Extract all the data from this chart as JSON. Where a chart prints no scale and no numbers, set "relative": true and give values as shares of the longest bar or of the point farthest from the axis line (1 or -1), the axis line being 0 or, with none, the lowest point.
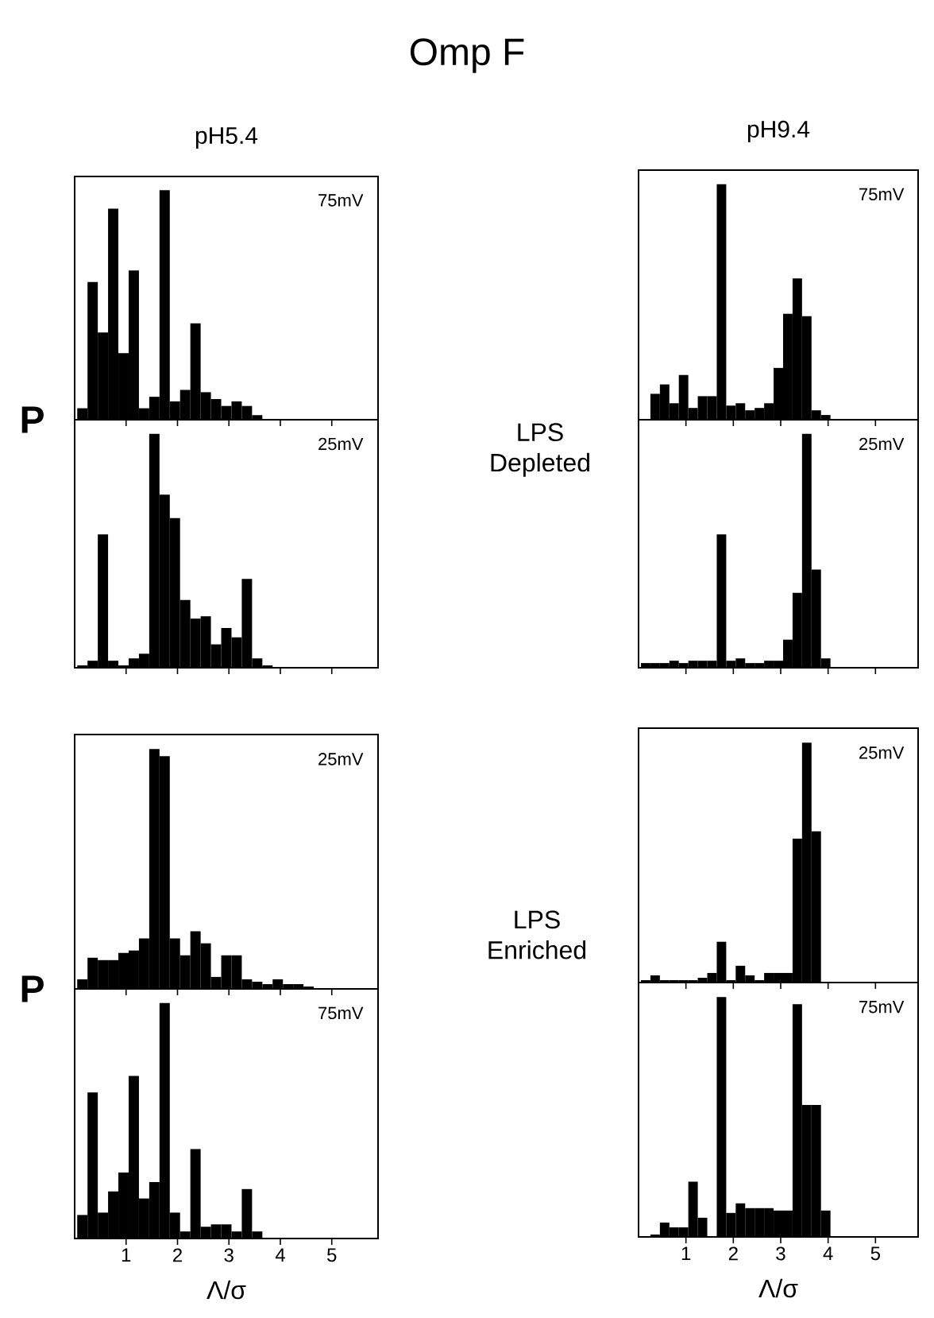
{
  "chart_data": [
    {
      "type": "other",
      "title": "Omp F",
      "annotations": [
        "LPS Depleted",
        "LPS Enriched"
      ]
    },
    {
      "type": "bar",
      "title": "pH5.4",
      "ylabel": "P",
      "annotations": [
        "75mV"
      ],
      "relative": true,
      "color": "#000000",
      "xlim": [
        0,
        5.9
      ],
      "xticks": [
        1,
        2,
        3,
        4,
        5
      ],
      "tick_labels": false,
      "x": [
        0.15,
        0.35,
        0.55,
        0.75,
        0.95,
        1.15,
        1.35,
        1.55,
        1.75,
        1.95,
        2.15,
        2.35,
        2.55,
        2.75,
        2.95,
        3.15,
        3.35,
        3.55,
        3.75,
        3.95,
        4.15,
        4.35,
        4.55,
        4.75
      ],
      "values": [
        0.05,
        0.6,
        0.38,
        0.92,
        0.29,
        0.65,
        0.05,
        0.1,
        1,
        0.08,
        0.13,
        0.42,
        0.12,
        0.09,
        0.06,
        0.08,
        0.06,
        0.02,
        0,
        0,
        0,
        0,
        0,
        0
      ]
    },
    {
      "type": "bar",
      "title": "pH9.4",
      "annotations": [
        "75mV"
      ],
      "relative": true,
      "color": "#000000",
      "xlim": [
        0,
        5.9
      ],
      "xticks": [
        1,
        2,
        3,
        4,
        5
      ],
      "tick_labels": false,
      "x": [
        0.15,
        0.35,
        0.55,
        0.75,
        0.95,
        1.15,
        1.35,
        1.55,
        1.75,
        1.95,
        2.15,
        2.35,
        2.55,
        2.75,
        2.95,
        3.15,
        3.35,
        3.55,
        3.75,
        3.95,
        4.15,
        4.35,
        4.55,
        4.75
      ],
      "values": [
        0,
        0.11,
        0.15,
        0.07,
        0.19,
        0.05,
        0.1,
        0.1,
        1,
        0.06,
        0.07,
        0.04,
        0.05,
        0.07,
        0.22,
        0.45,
        0.6,
        0.44,
        0.04,
        0.02,
        0,
        0,
        0,
        0
      ]
    },
    {
      "type": "bar",
      "annotations": [
        "25mV"
      ],
      "relative": true,
      "color": "#000000",
      "xlim": [
        0,
        5.9
      ],
      "xticks": [
        1,
        2,
        3,
        4,
        5
      ],
      "tick_labels": false,
      "x": [
        0.15,
        0.35,
        0.55,
        0.75,
        0.95,
        1.15,
        1.35,
        1.55,
        1.75,
        1.95,
        2.15,
        2.35,
        2.55,
        2.75,
        2.95,
        3.15,
        3.35,
        3.55,
        3.75,
        3.95,
        4.15,
        4.35,
        4.55,
        4.75
      ],
      "values": [
        0.01,
        0.03,
        0.57,
        0.03,
        0.01,
        0.04,
        0.06,
        1,
        0.74,
        0.64,
        0.29,
        0.21,
        0.22,
        0.1,
        0.17,
        0.13,
        0.38,
        0.04,
        0.01,
        0,
        0,
        0,
        0,
        0
      ]
    },
    {
      "type": "bar",
      "annotations": [
        "25mV"
      ],
      "relative": true,
      "color": "#000000",
      "xlim": [
        0,
        5.9
      ],
      "xticks": [
        1,
        2,
        3,
        4,
        5
      ],
      "tick_labels": false,
      "x": [
        0.15,
        0.35,
        0.55,
        0.75,
        0.95,
        1.15,
        1.35,
        1.55,
        1.75,
        1.95,
        2.15,
        2.35,
        2.55,
        2.75,
        2.95,
        3.15,
        3.35,
        3.55,
        3.75,
        3.95,
        4.15,
        4.35,
        4.55,
        4.75
      ],
      "values": [
        0.02,
        0.02,
        0.02,
        0.03,
        0.02,
        0.03,
        0.03,
        0.03,
        0.57,
        0.03,
        0.04,
        0.02,
        0.02,
        0.03,
        0.03,
        0.12,
        0.32,
        1,
        0.42,
        0.04,
        0,
        0,
        0,
        0
      ]
    },
    {
      "type": "bar",
      "ylabel": "P",
      "annotations": [
        "25mV"
      ],
      "relative": true,
      "color": "#000000",
      "xlim": [
        0,
        5.9
      ],
      "xticks": [
        1,
        2,
        3,
        4,
        5
      ],
      "tick_labels": false,
      "x": [
        0.15,
        0.35,
        0.55,
        0.75,
        0.95,
        1.15,
        1.35,
        1.55,
        1.75,
        1.95,
        2.15,
        2.35,
        2.55,
        2.75,
        2.95,
        3.15,
        3.35,
        3.55,
        3.75,
        3.95,
        4.15,
        4.35,
        4.55,
        4.75
      ],
      "values": [
        0.04,
        0.13,
        0.12,
        0.12,
        0.15,
        0.16,
        0.21,
        1,
        0.97,
        0.21,
        0.14,
        0.24,
        0.19,
        0.05,
        0.14,
        0.14,
        0.04,
        0.03,
        0.02,
        0.04,
        0.02,
        0.02,
        0.01,
        0
      ]
    },
    {
      "type": "bar",
      "annotations": [
        "25mV"
      ],
      "relative": true,
      "color": "#000000",
      "xlim": [
        0,
        5.9
      ],
      "xticks": [
        1,
        2,
        3,
        4,
        5
      ],
      "tick_labels": false,
      "x": [
        0.15,
        0.35,
        0.55,
        0.75,
        0.95,
        1.15,
        1.35,
        1.55,
        1.75,
        1.95,
        2.15,
        2.35,
        2.55,
        2.75,
        2.95,
        3.15,
        3.35,
        3.55,
        3.75,
        3.95,
        4.15,
        4.35,
        4.55,
        4.75
      ],
      "values": [
        0.01,
        0.03,
        0.01,
        0.01,
        0.01,
        0.01,
        0.02,
        0.04,
        0.17,
        0.01,
        0.07,
        0.03,
        0.01,
        0.04,
        0.04,
        0.04,
        0.6,
        1,
        0.63,
        0,
        0,
        0,
        0,
        0
      ]
    },
    {
      "type": "bar",
      "xlabel": "Λ/σ",
      "annotations": [
        "75mV"
      ],
      "relative": true,
      "color": "#000000",
      "xlim": [
        0,
        5.9
      ],
      "xticks": [
        1,
        2,
        3,
        4,
        5
      ],
      "tick_labels": "x",
      "x": [
        0.15,
        0.35,
        0.55,
        0.75,
        0.95,
        1.15,
        1.35,
        1.55,
        1.75,
        1.95,
        2.15,
        2.35,
        2.55,
        2.75,
        2.95,
        3.15,
        3.35,
        3.55,
        3.75,
        3.95,
        4.15,
        4.35,
        4.55,
        4.75
      ],
      "values": [
        0.1,
        0.62,
        0.11,
        0.2,
        0.28,
        0.69,
        0.17,
        0.24,
        1,
        0.11,
        0.03,
        0.38,
        0.05,
        0.06,
        0.06,
        0.03,
        0.21,
        0.03,
        0,
        0,
        0,
        0,
        0,
        0
      ]
    },
    {
      "type": "bar",
      "xlabel": "Λ/σ",
      "annotations": [
        "75mV"
      ],
      "relative": true,
      "color": "#000000",
      "xlim": [
        0,
        5.9
      ],
      "xticks": [
        1,
        2,
        3,
        4,
        5
      ],
      "tick_labels": "x",
      "x": [
        0.15,
        0.35,
        0.55,
        0.75,
        0.95,
        1.15,
        1.35,
        1.55,
        1.75,
        1.95,
        2.15,
        2.35,
        2.55,
        2.75,
        2.95,
        3.15,
        3.35,
        3.55,
        3.75,
        3.95,
        4.15,
        4.35,
        4.55,
        4.75
      ],
      "values": [
        0,
        0.01,
        0.06,
        0.04,
        0.04,
        0.23,
        0.08,
        0,
        1,
        0.1,
        0.14,
        0.12,
        0.12,
        0.12,
        0.11,
        0.11,
        0.97,
        0.55,
        0.55,
        0.11,
        0,
        0,
        0,
        0
      ]
    }
  ]
}
